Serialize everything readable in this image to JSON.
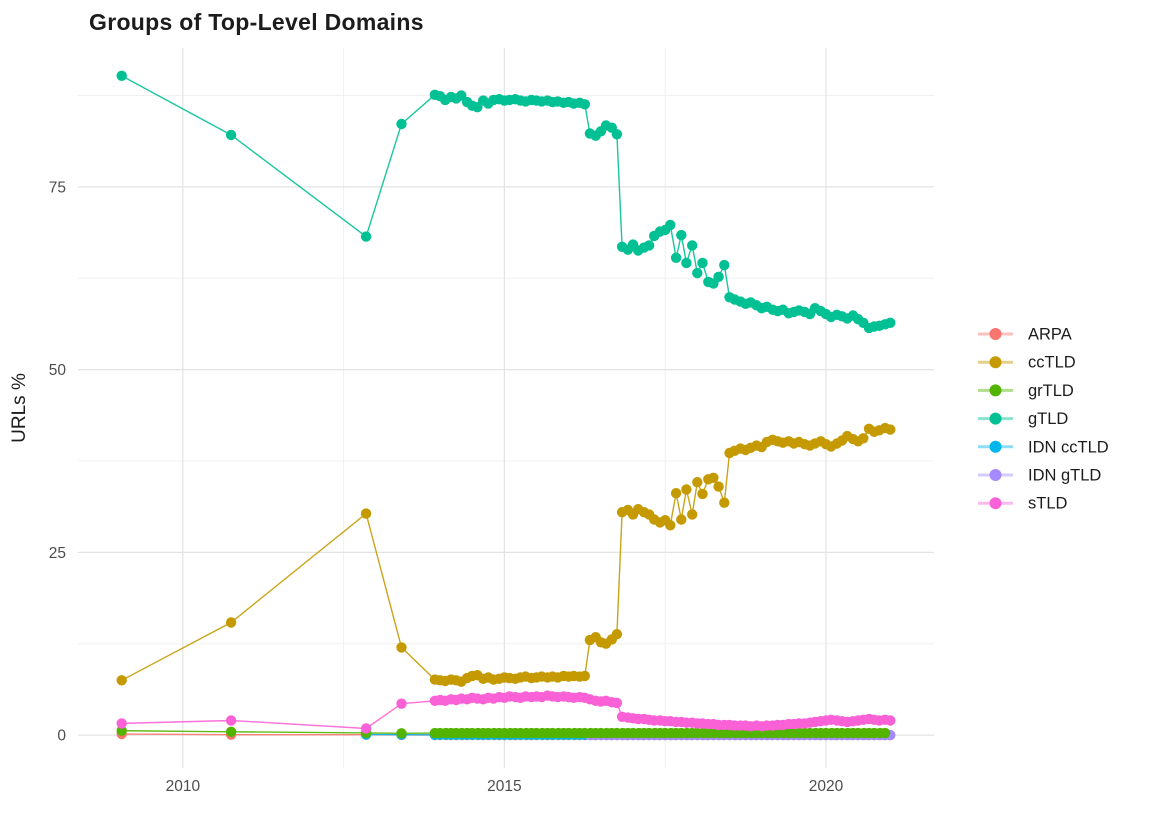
{
  "chart_data": {
    "type": "line",
    "title": "Groups of Top-Level Domains",
    "xlabel": "",
    "ylabel": "URLs %",
    "x_domain": [
      2008.37,
      2021.68
    ],
    "y_domain": [
      -4.5,
      94
    ],
    "x_ticks": [
      2010,
      2015,
      2020
    ],
    "x_minor_ticks": [
      2012.5,
      2017.5
    ],
    "y_ticks": [
      0,
      25,
      50,
      75
    ],
    "y_minor_ticks": [
      12.5,
      37.5,
      62.5,
      87.5
    ],
    "grid": true,
    "legend_position": "right",
    "series": [
      {
        "name": "ARPA",
        "color": "#F8766D",
        "points": [
          [
            2009.05,
            0.15
          ],
          [
            2010.75,
            0.05
          ],
          [
            2012.85,
            0.05
          ],
          [
            2013.4,
            0.03
          ]
        ],
        "fill": {
          "from": 2013.92,
          "to": 2021.0,
          "step": 0.08333,
          "value": 0.02
        }
      },
      {
        "name": "IDN ccTLD",
        "color": "#00B6EB",
        "points": [
          [
            2012.85,
            0.08
          ],
          [
            2013.4,
            0.05
          ]
        ],
        "fill": {
          "from": 2013.92,
          "to": 2021.0,
          "step": 0.08333,
          "value": 0.04
        }
      },
      {
        "name": "IDN gTLD",
        "color": "#A58AFF",
        "points": [],
        "fill": {
          "from": 2016.33,
          "to": 2021.0,
          "step": 0.08333,
          "value": 0.0
        }
      },
      {
        "name": "grTLD",
        "color": "#53B400",
        "points": [
          [
            2009.05,
            0.6
          ],
          [
            2010.75,
            0.45
          ],
          [
            2012.85,
            0.3
          ],
          [
            2013.4,
            0.25
          ]
        ],
        "fill": {
          "from": 2013.92,
          "to": 2021.0,
          "step": 0.08333,
          "value": 0.28
        }
      },
      {
        "name": "ccTLD",
        "color": "#C49A00",
        "points": [
          [
            2009.05,
            7.5
          ],
          [
            2010.75,
            15.4
          ],
          [
            2012.85,
            30.3
          ],
          [
            2013.4,
            12.0
          ],
          [
            2013.92,
            7.6
          ],
          [
            2014.0,
            7.5
          ],
          [
            2014.08,
            7.4
          ],
          [
            2014.17,
            7.6
          ],
          [
            2014.25,
            7.5
          ],
          [
            2014.33,
            7.3
          ],
          [
            2014.42,
            7.8
          ],
          [
            2014.5,
            8.1
          ],
          [
            2014.58,
            8.2
          ],
          [
            2014.67,
            7.7
          ],
          [
            2014.75,
            7.9
          ],
          [
            2014.83,
            7.6
          ],
          [
            2014.92,
            7.7
          ],
          [
            2015.0,
            7.9
          ],
          [
            2015.08,
            7.8
          ],
          [
            2015.17,
            7.7
          ],
          [
            2015.25,
            7.9
          ],
          [
            2015.33,
            8.0
          ],
          [
            2015.42,
            7.8
          ],
          [
            2015.5,
            7.9
          ],
          [
            2015.58,
            8.0
          ],
          [
            2015.67,
            7.9
          ],
          [
            2015.75,
            8.0
          ],
          [
            2015.83,
            7.9
          ],
          [
            2015.92,
            8.1
          ],
          [
            2016.0,
            8.0
          ],
          [
            2016.08,
            8.1
          ],
          [
            2016.17,
            8.0
          ],
          [
            2016.25,
            8.1
          ],
          [
            2016.33,
            13.0
          ],
          [
            2016.42,
            13.4
          ],
          [
            2016.5,
            12.7
          ],
          [
            2016.58,
            12.5
          ],
          [
            2016.67,
            13.1
          ],
          [
            2016.75,
            13.8
          ],
          [
            2016.83,
            30.5
          ],
          [
            2016.92,
            30.8
          ],
          [
            2017.0,
            30.2
          ],
          [
            2017.08,
            30.9
          ],
          [
            2017.17,
            30.5
          ],
          [
            2017.25,
            30.2
          ],
          [
            2017.33,
            29.5
          ],
          [
            2017.42,
            29.1
          ],
          [
            2017.5,
            29.4
          ],
          [
            2017.58,
            28.7
          ],
          [
            2017.67,
            33.1
          ],
          [
            2017.75,
            29.5
          ],
          [
            2017.83,
            33.6
          ],
          [
            2017.92,
            30.2
          ],
          [
            2018.0,
            34.6
          ],
          [
            2018.08,
            33.0
          ],
          [
            2018.17,
            35.0
          ],
          [
            2018.25,
            35.2
          ],
          [
            2018.33,
            34.0
          ],
          [
            2018.42,
            31.8
          ],
          [
            2018.5,
            38.6
          ],
          [
            2018.58,
            38.9
          ],
          [
            2018.67,
            39.2
          ],
          [
            2018.75,
            39.0
          ],
          [
            2018.83,
            39.3
          ],
          [
            2018.92,
            39.6
          ],
          [
            2019.0,
            39.4
          ],
          [
            2019.08,
            40.1
          ],
          [
            2019.17,
            40.4
          ],
          [
            2019.25,
            40.2
          ],
          [
            2019.33,
            40.0
          ],
          [
            2019.42,
            40.2
          ],
          [
            2019.5,
            39.9
          ],
          [
            2019.58,
            40.1
          ],
          [
            2019.67,
            39.8
          ],
          [
            2019.75,
            39.6
          ],
          [
            2019.83,
            39.9
          ],
          [
            2019.92,
            40.2
          ],
          [
            2020.0,
            39.8
          ],
          [
            2020.08,
            39.5
          ],
          [
            2020.17,
            39.9
          ],
          [
            2020.25,
            40.3
          ],
          [
            2020.33,
            40.9
          ],
          [
            2020.42,
            40.5
          ],
          [
            2020.5,
            40.2
          ],
          [
            2020.58,
            40.6
          ],
          [
            2020.67,
            41.9
          ],
          [
            2020.75,
            41.5
          ],
          [
            2020.83,
            41.7
          ],
          [
            2020.92,
            42.0
          ],
          [
            2021.0,
            41.8
          ]
        ]
      },
      {
        "name": "sTLD",
        "color": "#FB61D7",
        "points": [
          [
            2009.05,
            1.6
          ],
          [
            2010.75,
            2.0
          ],
          [
            2012.85,
            0.9
          ],
          [
            2013.4,
            4.3
          ],
          [
            2013.92,
            4.7
          ],
          [
            2014.0,
            4.8
          ],
          [
            2014.08,
            4.7
          ],
          [
            2014.17,
            4.9
          ],
          [
            2014.25,
            4.8
          ],
          [
            2014.33,
            5.0
          ],
          [
            2014.42,
            4.9
          ],
          [
            2014.5,
            5.1
          ],
          [
            2014.58,
            5.0
          ],
          [
            2014.67,
            4.9
          ],
          [
            2014.75,
            5.1
          ],
          [
            2014.83,
            5.0
          ],
          [
            2014.92,
            5.2
          ],
          [
            2015.0,
            5.1
          ],
          [
            2015.08,
            5.3
          ],
          [
            2015.17,
            5.2
          ],
          [
            2015.25,
            5.1
          ],
          [
            2015.33,
            5.3
          ],
          [
            2015.42,
            5.2
          ],
          [
            2015.5,
            5.3
          ],
          [
            2015.58,
            5.2
          ],
          [
            2015.67,
            5.4
          ],
          [
            2015.75,
            5.3
          ],
          [
            2015.83,
            5.2
          ],
          [
            2015.92,
            5.3
          ],
          [
            2016.0,
            5.2
          ],
          [
            2016.08,
            5.1
          ],
          [
            2016.17,
            5.2
          ],
          [
            2016.25,
            5.1
          ],
          [
            2016.33,
            4.9
          ],
          [
            2016.42,
            4.7
          ],
          [
            2016.5,
            4.6
          ],
          [
            2016.58,
            4.7
          ],
          [
            2016.67,
            4.5
          ],
          [
            2016.75,
            4.4
          ],
          [
            2016.83,
            2.5
          ],
          [
            2016.92,
            2.4
          ],
          [
            2017.0,
            2.3
          ],
          [
            2017.08,
            2.2
          ],
          [
            2017.17,
            2.2
          ],
          [
            2017.25,
            2.1
          ],
          [
            2017.33,
            2.0
          ],
          [
            2017.42,
            2.0
          ],
          [
            2017.5,
            1.9
          ],
          [
            2017.58,
            1.9
          ],
          [
            2017.67,
            1.8
          ],
          [
            2017.75,
            1.8
          ],
          [
            2017.83,
            1.7
          ],
          [
            2017.92,
            1.7
          ],
          [
            2018.0,
            1.6
          ],
          [
            2018.08,
            1.6
          ],
          [
            2018.17,
            1.5
          ],
          [
            2018.25,
            1.5
          ],
          [
            2018.33,
            1.4
          ],
          [
            2018.42,
            1.4
          ],
          [
            2018.5,
            1.4
          ],
          [
            2018.58,
            1.3
          ],
          [
            2018.67,
            1.3
          ],
          [
            2018.75,
            1.3
          ],
          [
            2018.83,
            1.2
          ],
          [
            2018.92,
            1.3
          ],
          [
            2019.0,
            1.2
          ],
          [
            2019.08,
            1.3
          ],
          [
            2019.17,
            1.3
          ],
          [
            2019.25,
            1.4
          ],
          [
            2019.33,
            1.4
          ],
          [
            2019.42,
            1.5
          ],
          [
            2019.5,
            1.5
          ],
          [
            2019.58,
            1.6
          ],
          [
            2019.67,
            1.6
          ],
          [
            2019.75,
            1.7
          ],
          [
            2019.83,
            1.8
          ],
          [
            2019.92,
            1.9
          ],
          [
            2020.0,
            2.0
          ],
          [
            2020.08,
            2.1
          ],
          [
            2020.17,
            2.0
          ],
          [
            2020.25,
            1.9
          ],
          [
            2020.33,
            1.8
          ],
          [
            2020.42,
            1.9
          ],
          [
            2020.5,
            2.0
          ],
          [
            2020.58,
            2.1
          ],
          [
            2020.67,
            2.2
          ],
          [
            2020.75,
            2.1
          ],
          [
            2020.83,
            2.0
          ],
          [
            2020.92,
            2.1
          ],
          [
            2021.0,
            2.0
          ]
        ]
      },
      {
        "name": "gTLD",
        "color": "#00C094",
        "points": [
          [
            2009.05,
            90.2
          ],
          [
            2010.75,
            82.1
          ],
          [
            2012.85,
            68.2
          ],
          [
            2013.4,
            83.6
          ],
          [
            2013.92,
            87.6
          ],
          [
            2014.0,
            87.4
          ],
          [
            2014.08,
            86.9
          ],
          [
            2014.17,
            87.3
          ],
          [
            2014.25,
            87.1
          ],
          [
            2014.33,
            87.5
          ],
          [
            2014.42,
            86.6
          ],
          [
            2014.5,
            86.1
          ],
          [
            2014.58,
            85.9
          ],
          [
            2014.67,
            86.8
          ],
          [
            2014.75,
            86.4
          ],
          [
            2014.83,
            86.9
          ],
          [
            2014.92,
            87.0
          ],
          [
            2015.0,
            86.8
          ],
          [
            2015.08,
            86.9
          ],
          [
            2015.17,
            87.0
          ],
          [
            2015.25,
            86.8
          ],
          [
            2015.33,
            86.7
          ],
          [
            2015.42,
            86.9
          ],
          [
            2015.5,
            86.8
          ],
          [
            2015.58,
            86.7
          ],
          [
            2015.67,
            86.8
          ],
          [
            2015.75,
            86.6
          ],
          [
            2015.83,
            86.7
          ],
          [
            2015.92,
            86.5
          ],
          [
            2016.0,
            86.6
          ],
          [
            2016.08,
            86.4
          ],
          [
            2016.17,
            86.5
          ],
          [
            2016.25,
            86.3
          ],
          [
            2016.33,
            82.3
          ],
          [
            2016.42,
            82.0
          ],
          [
            2016.5,
            82.6
          ],
          [
            2016.58,
            83.4
          ],
          [
            2016.67,
            83.1
          ],
          [
            2016.75,
            82.2
          ],
          [
            2016.83,
            66.8
          ],
          [
            2016.92,
            66.4
          ],
          [
            2017.0,
            67.1
          ],
          [
            2017.08,
            66.3
          ],
          [
            2017.17,
            66.7
          ],
          [
            2017.25,
            67.0
          ],
          [
            2017.33,
            68.3
          ],
          [
            2017.42,
            68.9
          ],
          [
            2017.5,
            69.1
          ],
          [
            2017.58,
            69.8
          ],
          [
            2017.67,
            65.3
          ],
          [
            2017.75,
            68.4
          ],
          [
            2017.83,
            64.6
          ],
          [
            2017.92,
            67.0
          ],
          [
            2018.0,
            63.2
          ],
          [
            2018.08,
            64.6
          ],
          [
            2018.17,
            62.0
          ],
          [
            2018.25,
            61.8
          ],
          [
            2018.33,
            62.7
          ],
          [
            2018.42,
            64.3
          ],
          [
            2018.5,
            59.9
          ],
          [
            2018.58,
            59.6
          ],
          [
            2018.67,
            59.3
          ],
          [
            2018.75,
            59.0
          ],
          [
            2018.83,
            59.2
          ],
          [
            2018.92,
            58.8
          ],
          [
            2019.0,
            58.4
          ],
          [
            2019.08,
            58.6
          ],
          [
            2019.17,
            58.2
          ],
          [
            2019.25,
            58.0
          ],
          [
            2019.33,
            58.2
          ],
          [
            2019.42,
            57.7
          ],
          [
            2019.5,
            57.9
          ],
          [
            2019.58,
            58.1
          ],
          [
            2019.67,
            57.9
          ],
          [
            2019.75,
            57.6
          ],
          [
            2019.83,
            58.4
          ],
          [
            2019.92,
            58.0
          ],
          [
            2020.0,
            57.6
          ],
          [
            2020.08,
            57.2
          ],
          [
            2020.17,
            57.5
          ],
          [
            2020.25,
            57.3
          ],
          [
            2020.33,
            57.0
          ],
          [
            2020.42,
            57.4
          ],
          [
            2020.5,
            56.9
          ],
          [
            2020.58,
            56.4
          ],
          [
            2020.67,
            55.7
          ],
          [
            2020.75,
            55.9
          ],
          [
            2020.83,
            56.0
          ],
          [
            2020.92,
            56.2
          ],
          [
            2021.0,
            56.4
          ]
        ]
      }
    ]
  },
  "legend": {
    "items": [
      {
        "label": "ARPA",
        "color": "#F8766D"
      },
      {
        "label": "ccTLD",
        "color": "#C49A00"
      },
      {
        "label": "grTLD",
        "color": "#53B400"
      },
      {
        "label": "gTLD",
        "color": "#00C094"
      },
      {
        "label": "IDN ccTLD",
        "color": "#00B6EB"
      },
      {
        "label": "IDN gTLD",
        "color": "#A58AFF"
      },
      {
        "label": "sTLD",
        "color": "#FB61D7"
      }
    ]
  },
  "style": {
    "grid_major_color": "#e3e3e3",
    "grid_minor_color": "#f0f0f0",
    "tick_label_color": "#4d4d4d",
    "text_color": "#1c1c1c",
    "background": "#ffffff"
  }
}
